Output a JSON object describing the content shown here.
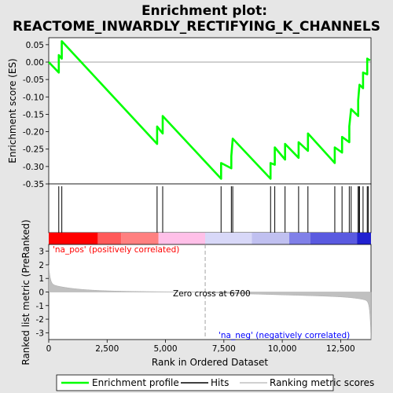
{
  "chart_data": {
    "type": "line",
    "title_line1": "Enrichment plot:",
    "title_line2": "REACTOME_INWARDLY_RECTIFYING_K_CHANNELS",
    "ylabel_top": "Enrichment score (ES)",
    "ylabel_bottom": "Ranked list metric (PreRanked)",
    "xlabel": "Rank in Ordered Dataset",
    "xlim": [
      0,
      13800
    ],
    "es_ylim": [
      -0.35,
      0.07
    ],
    "metric_ylim": [
      -3.5,
      3.5
    ],
    "x_ticks": [
      0,
      2500,
      5000,
      7500,
      10000,
      12500
    ],
    "x_tick_labels": [
      "0",
      "2,500",
      "5,000",
      "7,500",
      "10,000",
      "12,500"
    ],
    "es_ticks": [
      0.05,
      0.0,
      -0.05,
      -0.1,
      -0.15,
      -0.2,
      -0.25,
      -0.3,
      -0.35
    ],
    "es_tick_labels": [
      "0.05",
      "0.00",
      "-0.05",
      "-0.10",
      "-0.15",
      "-0.20",
      "-0.25",
      "-0.30",
      "-0.35"
    ],
    "metric_ticks": [
      3,
      2,
      1,
      0,
      -1,
      -2,
      -3
    ],
    "metric_tick_labels": [
      "3",
      "2",
      "1",
      "0",
      "-1",
      "-2",
      "-3"
    ],
    "hits": [
      430,
      560,
      4640,
      4880,
      7380,
      7820,
      7880,
      9500,
      9680,
      10120,
      10700,
      11100,
      12250,
      12560,
      12870,
      12950,
      13250,
      13290,
      13310,
      13460,
      13640,
      13680
    ],
    "es_values": [
      0.0,
      -0.03,
      0.02,
      0.01,
      0.06,
      -0.235,
      -0.185,
      -0.205,
      -0.155,
      -0.335,
      -0.29,
      -0.305,
      -0.27,
      -0.22,
      -0.335,
      -0.29,
      -0.295,
      -0.245,
      -0.28,
      -0.235,
      -0.275,
      -0.23,
      -0.255,
      -0.205,
      -0.29,
      -0.245,
      -0.26,
      -0.215,
      -0.23,
      -0.185,
      -0.135,
      -0.155,
      -0.11,
      -0.08,
      -0.065,
      -0.075,
      -0.03,
      -0.035,
      0.01,
      0.005
    ],
    "es_x": [
      0,
      430,
      430,
      560,
      560,
      4640,
      4640,
      4880,
      4880,
      7380,
      7380,
      7820,
      7820,
      7880,
      9500,
      9500,
      9680,
      9680,
      10120,
      10120,
      10700,
      10700,
      11100,
      11100,
      12250,
      12250,
      12560,
      12560,
      12870,
      12870,
      12950,
      13250,
      13250,
      13290,
      13310,
      13460,
      13460,
      13640,
      13640,
      13760
    ],
    "zero_cross": 6700,
    "zero_cross_label": "Zero cross at 6700",
    "pos_label": "'na_pos' (positively correlated)",
    "neg_label": "'na_neg' (negatively correlated)",
    "legend": {
      "enrichment_profile": "Enrichment profile",
      "hits": "Hits",
      "ranking_metric": "Ranking metric scores"
    },
    "colors": {
      "es_line": "#00ff00",
      "hit_line": "#000000",
      "metric_fill": "#c0c0c0",
      "pos_label": "#ff0000",
      "neg_label": "#0000ff",
      "bar_segments": [
        "#ff0000",
        "#ff5a5a",
        "#ff8080",
        "#ffc0e8",
        "#d8d8f8",
        "#c0c0f0",
        "#8080e8",
        "#5a5ae0",
        "#2020d0"
      ]
    }
  }
}
